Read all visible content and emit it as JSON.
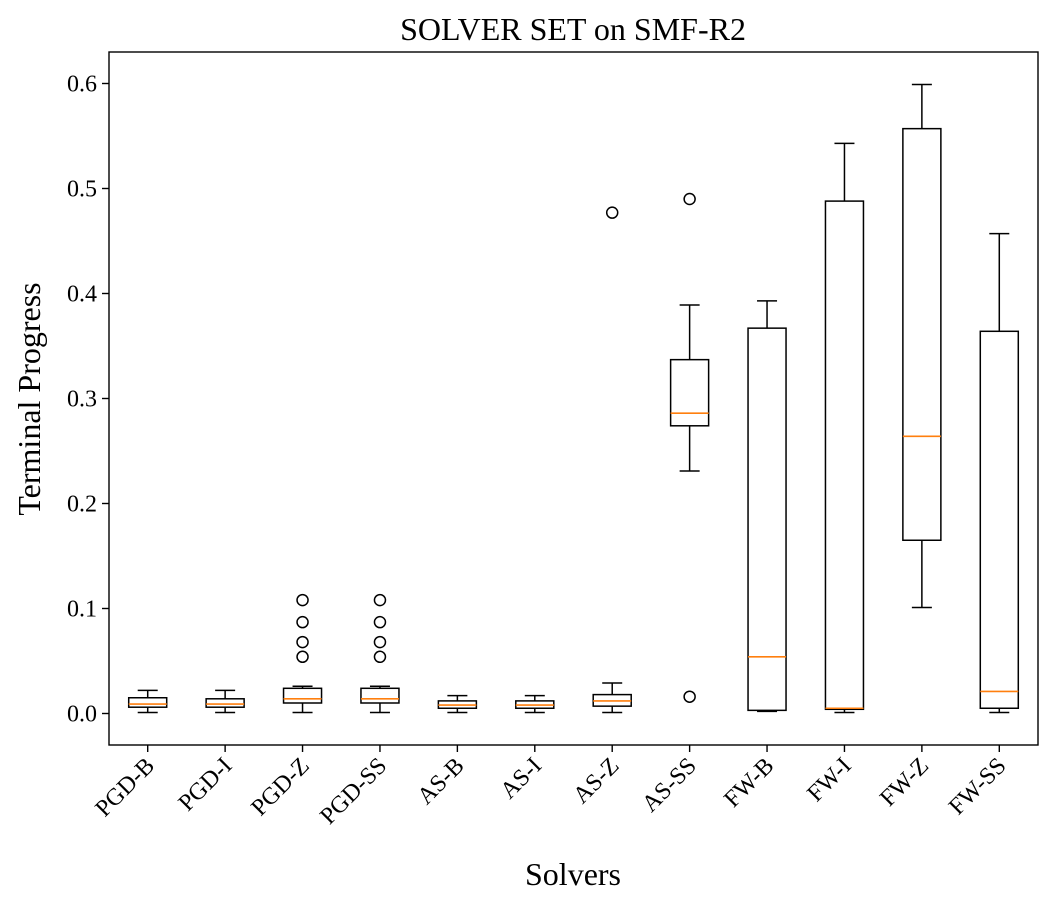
{
  "chart_data": {
    "type": "box",
    "title": "SOLVER SET on SMF-R2",
    "xlabel": "Solvers",
    "ylabel": "Terminal Progress",
    "ylim": [
      -0.03,
      0.63
    ],
    "yticks": [
      0.0,
      0.1,
      0.2,
      0.3,
      0.4,
      0.5,
      0.6
    ],
    "ytick_labels": [
      "0.0",
      "0.1",
      "0.2",
      "0.3",
      "0.4",
      "0.5",
      "0.6"
    ],
    "grid": false,
    "categories": [
      "PGD-B",
      "PGD-I",
      "PGD-Z",
      "PGD-SS",
      "AS-B",
      "AS-I",
      "AS-Z",
      "AS-SS",
      "FW-B",
      "FW-I",
      "FW-Z",
      "FW-SS"
    ],
    "boxes": [
      {
        "whisker_low": 0.001,
        "q1": 0.006,
        "median": 0.009,
        "q3": 0.015,
        "whisker_high": 0.022,
        "outliers": []
      },
      {
        "whisker_low": 0.001,
        "q1": 0.006,
        "median": 0.009,
        "q3": 0.014,
        "whisker_high": 0.022,
        "outliers": []
      },
      {
        "whisker_low": 0.001,
        "q1": 0.01,
        "median": 0.014,
        "q3": 0.024,
        "whisker_high": 0.026,
        "outliers": [
          0.054,
          0.068,
          0.087,
          0.108
        ]
      },
      {
        "whisker_low": 0.001,
        "q1": 0.01,
        "median": 0.014,
        "q3": 0.024,
        "whisker_high": 0.026,
        "outliers": [
          0.054,
          0.068,
          0.087,
          0.108
        ]
      },
      {
        "whisker_low": 0.001,
        "q1": 0.005,
        "median": 0.008,
        "q3": 0.012,
        "whisker_high": 0.017,
        "outliers": []
      },
      {
        "whisker_low": 0.001,
        "q1": 0.005,
        "median": 0.008,
        "q3": 0.012,
        "whisker_high": 0.017,
        "outliers": []
      },
      {
        "whisker_low": 0.001,
        "q1": 0.007,
        "median": 0.012,
        "q3": 0.018,
        "whisker_high": 0.029,
        "outliers": [
          0.477
        ]
      },
      {
        "whisker_low": 0.231,
        "q1": 0.274,
        "median": 0.286,
        "q3": 0.337,
        "whisker_high": 0.389,
        "outliers": [
          0.016,
          0.49
        ]
      },
      {
        "whisker_low": 0.002,
        "q1": 0.003,
        "median": 0.054,
        "q3": 0.367,
        "whisker_high": 0.393,
        "outliers": []
      },
      {
        "whisker_low": 0.001,
        "q1": 0.004,
        "median": 0.005,
        "q3": 0.488,
        "whisker_high": 0.543,
        "outliers": []
      },
      {
        "whisker_low": 0.101,
        "q1": 0.165,
        "median": 0.264,
        "q3": 0.557,
        "whisker_high": 0.599,
        "outliers": []
      },
      {
        "whisker_low": 0.001,
        "q1": 0.005,
        "median": 0.021,
        "q3": 0.364,
        "whisker_high": 0.457,
        "outliers": []
      }
    ],
    "colors": {
      "box": "#000000",
      "median": "#ff7f0e",
      "axis": "#000000"
    }
  }
}
